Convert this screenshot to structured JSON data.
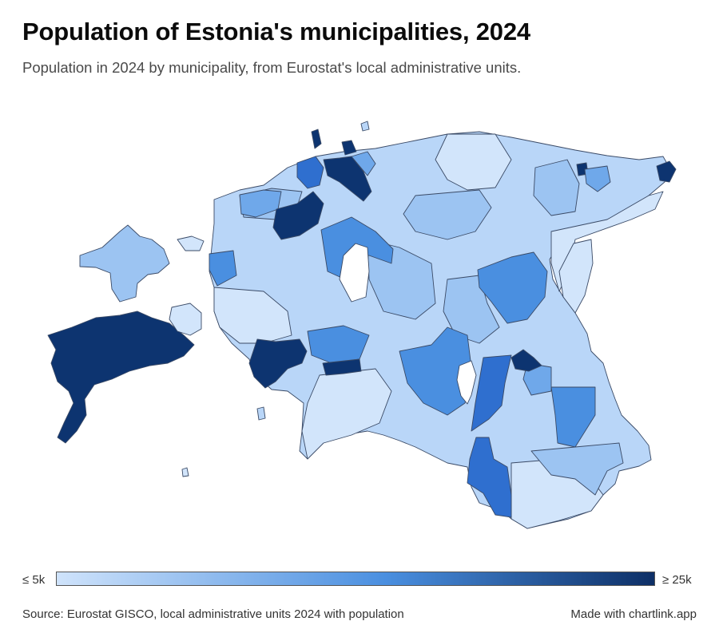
{
  "header": {
    "title": "Population of Estonia's municipalities, 2024",
    "subtitle": "Population in 2024 by municipality, from Eurostat's local administrative units."
  },
  "legend": {
    "min_label": "≤ 5k",
    "max_label": "≥ 25k",
    "color_low": "#cfe3fb",
    "color_mid": "#4a8fe0",
    "color_high": "#0d2f66"
  },
  "footer": {
    "source": "Source: Eurostat GISCO, local administrative units 2024 with population",
    "credit": "Made with chartlink.app"
  },
  "palette": {
    "outline": "#3a4a66",
    "shade_1": "#d2e5fb",
    "shade_2": "#b9d6f8",
    "shade_3": "#9cc4f2",
    "shade_4": "#6fa8ea",
    "shade_5": "#4a8fe0",
    "shade_6": "#2f6fcf",
    "shade_7": "#0d3470"
  }
}
